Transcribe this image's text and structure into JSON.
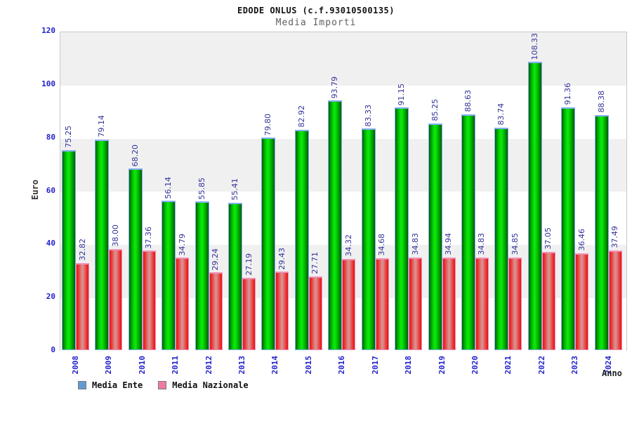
{
  "title": "EDODE ONLUS (c.f.93010500135)",
  "subtitle": "Media Importi",
  "axes": {
    "y_label": "Euro",
    "x_label": "Anno",
    "y_ticks": [
      0,
      20,
      40,
      60,
      80,
      100,
      120
    ],
    "y_max": 120
  },
  "legend": {
    "items": [
      {
        "label": "Media Ente",
        "swatch_color": "#639bd2"
      },
      {
        "label": "Media Nazionale",
        "swatch_color": "#ee7ba2"
      }
    ]
  },
  "colors": {
    "band_gray": "#f0f0f1",
    "band_white": "#ffffff",
    "tick_label_blue": "#2323cd",
    "value_label_navy": "#333399",
    "green_bar_center": "#0ae50a",
    "green_bar_edge": "#015d01",
    "green_bar_border": "#86aef2",
    "red_bar_center": "#da8f8f",
    "red_bar_edge": "#ee2525",
    "red_bar_border": "#f291b8"
  },
  "chart_data": {
    "type": "bar",
    "title": "EDODE ONLUS (c.f.93010500135)",
    "subtitle": "Media Importi",
    "xlabel": "Anno",
    "ylabel": "Euro",
    "ylim": [
      0,
      120
    ],
    "grid": "banded-horizontal",
    "legend_position": "bottom",
    "categories": [
      "2008",
      "2009",
      "2010",
      "2011",
      "2012",
      "2013",
      "2014",
      "2015",
      "2016",
      "2017",
      "2018",
      "2019",
      "2020",
      "2021",
      "2022",
      "2023",
      "2024"
    ],
    "series": [
      {
        "name": "Media Ente",
        "values": [
          75.25,
          79.14,
          68.2,
          56.14,
          55.85,
          55.41,
          79.8,
          82.92,
          93.79,
          83.33,
          91.15,
          85.25,
          88.63,
          83.74,
          108.33,
          91.36,
          88.38
        ]
      },
      {
        "name": "Media Nazionale",
        "values": [
          32.82,
          38.0,
          37.36,
          34.79,
          29.24,
          27.19,
          29.43,
          27.71,
          34.32,
          34.68,
          34.83,
          34.94,
          34.83,
          34.85,
          37.05,
          36.46,
          37.49
        ]
      }
    ]
  }
}
